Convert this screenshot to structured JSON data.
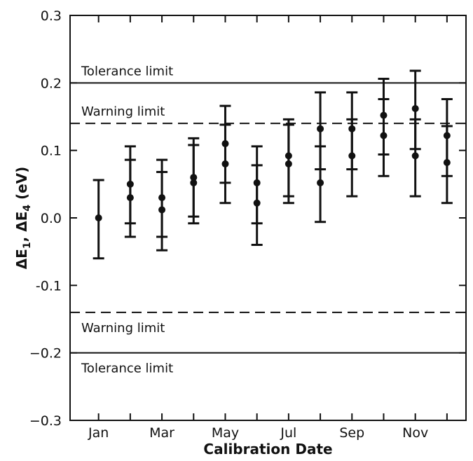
{
  "chart_data": {
    "type": "scatter",
    "title": "",
    "xlabel": "Calibration Date",
    "ylabel": {
      "symbol": "ΔE",
      "sub1": "1",
      "separator": ", ",
      "sub2": "4",
      "unit": " (eV)"
    },
    "ylim": [
      -0.3,
      0.3
    ],
    "yticks": [
      {
        "value": 0.3,
        "label": "0.3"
      },
      {
        "value": 0.2,
        "label": "0.2"
      },
      {
        "value": 0.1,
        "label": "0.1"
      },
      {
        "value": 0.0,
        "label": "0.0"
      },
      {
        "value": -0.1,
        "label": "-0.1"
      },
      {
        "value": -0.2,
        "label": "−0.2"
      },
      {
        "value": -0.3,
        "label": "−0.3"
      }
    ],
    "xticks": [
      {
        "index": 0,
        "label": "Jan"
      },
      {
        "index": 1,
        "label": ""
      },
      {
        "index": 2,
        "label": "Mar"
      },
      {
        "index": 3,
        "label": ""
      },
      {
        "index": 4,
        "label": "May"
      },
      {
        "index": 5,
        "label": ""
      },
      {
        "index": 6,
        "label": "Jul"
      },
      {
        "index": 7,
        "label": ""
      },
      {
        "index": 8,
        "label": "Sep"
      },
      {
        "index": 9,
        "label": ""
      },
      {
        "index": 10,
        "label": "Nov"
      },
      {
        "index": 11,
        "label": ""
      }
    ],
    "limits": [
      {
        "value": 0.2,
        "style": "solid",
        "label": "Tolerance limit"
      },
      {
        "value": 0.14,
        "style": "dashed",
        "label": "Warning limit"
      },
      {
        "value": -0.14,
        "style": "dashed",
        "label": "Warning limit"
      },
      {
        "value": -0.2,
        "style": "solid",
        "label": "Tolerance limit"
      }
    ],
    "points": [
      {
        "month": 0,
        "y": 0.0,
        "low": -0.06,
        "high": 0.056
      },
      {
        "month": 1,
        "y": 0.05,
        "low": -0.008,
        "high": 0.106
      },
      {
        "month": 1,
        "y": 0.03,
        "low": -0.028,
        "high": 0.086
      },
      {
        "month": 2,
        "y": 0.03,
        "low": -0.028,
        "high": 0.086
      },
      {
        "month": 2,
        "y": 0.012,
        "low": -0.048,
        "high": 0.068
      },
      {
        "month": 3,
        "y": 0.06,
        "low": 0.002,
        "high": 0.118
      },
      {
        "month": 3,
        "y": 0.052,
        "low": -0.008,
        "high": 0.108
      },
      {
        "month": 4,
        "y": 0.11,
        "low": 0.052,
        "high": 0.166
      },
      {
        "month": 4,
        "y": 0.08,
        "low": 0.022,
        "high": 0.138
      },
      {
        "month": 5,
        "y": 0.052,
        "low": -0.008,
        "high": 0.106
      },
      {
        "month": 5,
        "y": 0.022,
        "low": -0.04,
        "high": 0.078
      },
      {
        "month": 6,
        "y": 0.092,
        "low": 0.032,
        "high": 0.146
      },
      {
        "month": 6,
        "y": 0.08,
        "low": 0.022,
        "high": 0.138
      },
      {
        "month": 7,
        "y": 0.132,
        "low": 0.072,
        "high": 0.186
      },
      {
        "month": 7,
        "y": 0.052,
        "low": -0.006,
        "high": 0.106
      },
      {
        "month": 8,
        "y": 0.132,
        "low": 0.072,
        "high": 0.186
      },
      {
        "month": 8,
        "y": 0.092,
        "low": 0.032,
        "high": 0.146
      },
      {
        "month": 9,
        "y": 0.152,
        "low": 0.094,
        "high": 0.206
      },
      {
        "month": 9,
        "y": 0.122,
        "low": 0.062,
        "high": 0.176
      },
      {
        "month": 10,
        "y": 0.162,
        "low": 0.102,
        "high": 0.218
      },
      {
        "month": 10,
        "y": 0.092,
        "low": 0.032,
        "high": 0.146
      },
      {
        "month": 11,
        "y": 0.122,
        "low": 0.062,
        "high": 0.176
      },
      {
        "month": 11,
        "y": 0.082,
        "low": 0.022,
        "high": 0.136
      }
    ],
    "grid": false,
    "legend": "none"
  }
}
